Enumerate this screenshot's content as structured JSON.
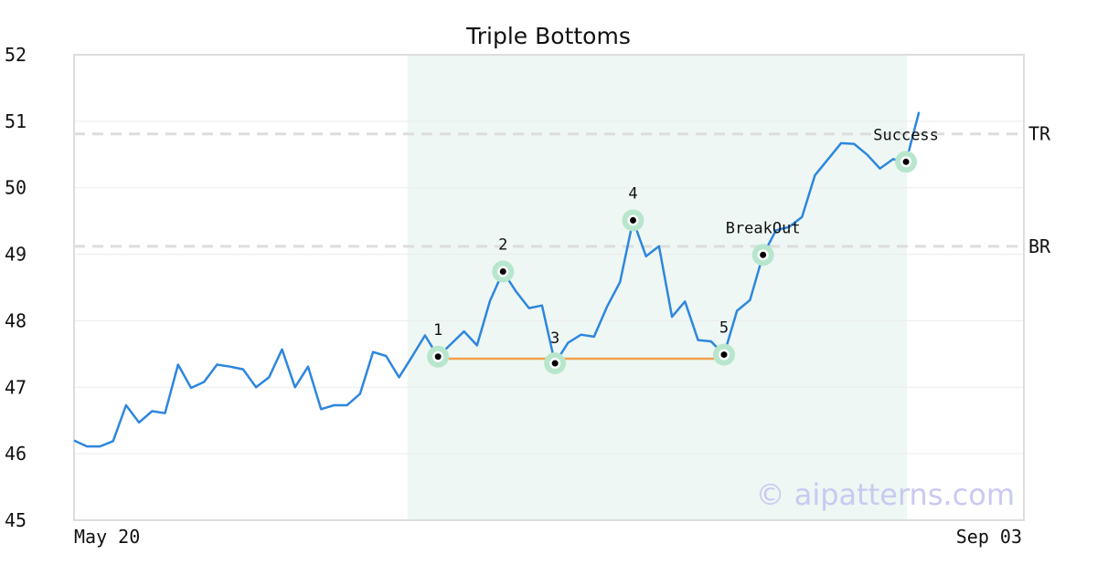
{
  "chart_data": {
    "type": "line",
    "title": "Triple Bottoms",
    "xlabel": "",
    "ylabel": "",
    "x_start_label": "May 20",
    "x_end_label": "Sep 03",
    "ylim": [
      45,
      52
    ],
    "yticks": [
      45,
      46,
      47,
      48,
      49,
      50,
      51,
      52
    ],
    "grid": true,
    "series": [
      {
        "color": "#2e86de",
        "values": [
          46.2,
          46.11,
          46.11,
          46.19,
          46.73,
          46.47,
          46.64,
          46.61,
          47.34,
          46.99,
          47.08,
          47.34,
          47.31,
          47.27,
          47.0,
          47.15,
          47.57,
          47.0,
          47.31,
          46.67,
          46.73,
          46.73,
          46.9,
          47.53,
          47.47,
          47.15,
          47.46,
          47.78,
          47.46,
          47.65,
          47.84,
          47.63,
          48.3,
          48.74,
          48.44,
          48.19,
          48.23,
          47.36,
          47.67,
          47.79,
          47.76,
          48.21,
          48.58,
          49.51,
          48.97,
          49.12,
          48.06,
          48.29,
          47.71,
          47.69,
          47.49,
          48.15,
          48.31,
          48.99,
          49.36,
          49.41,
          49.56,
          50.19,
          50.43,
          50.67,
          50.66,
          50.5,
          50.29,
          50.43,
          50.39,
          51.14
        ]
      }
    ],
    "reference_lines": [
      {
        "label": "TR",
        "value": 50.81,
        "color": "#dddddd"
      },
      {
        "label": "BR",
        "value": 49.12,
        "color": "#dddddd"
      }
    ],
    "highlight_region": {
      "start_index": 26,
      "end_index": 64,
      "color": "#eef7f3"
    },
    "support_line": {
      "start_index": 28,
      "end_index": 50,
      "value": 47.43,
      "color": "#f0a04b"
    },
    "points": [
      {
        "label": "1",
        "index": 28,
        "value": 47.46
      },
      {
        "label": "2",
        "index": 33,
        "value": 48.74
      },
      {
        "label": "3",
        "index": 37,
        "value": 47.36
      },
      {
        "label": "4",
        "index": 43,
        "value": 49.51
      },
      {
        "label": "5",
        "index": 50,
        "value": 47.49
      },
      {
        "label": "BreakOut",
        "index": 53,
        "value": 48.99
      },
      {
        "label": "Success",
        "index": 64,
        "value": 50.39
      }
    ],
    "marker_color": "#b8e6cd"
  },
  "watermark": "© aipatterns.com"
}
